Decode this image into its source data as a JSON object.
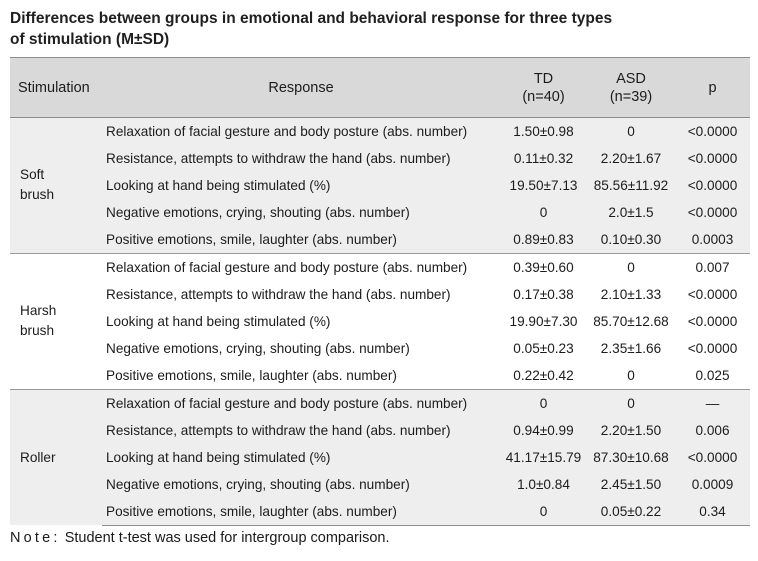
{
  "caption": {
    "line1": "Differences between groups in emotional and behavioral response for three types",
    "line2": "of stimulation (M±SD)"
  },
  "header": {
    "stimulation": "Stimulation",
    "response": "Response",
    "td": "TD",
    "td_n": "(n=40)",
    "asd": "ASD",
    "asd_n": "(n=39)",
    "p": "p"
  },
  "groups": [
    {
      "stimulation_line1": "Soft",
      "stimulation_line2": "brush",
      "rows": [
        {
          "response": "Relaxation of facial gesture and body posture (abs. number)",
          "td": "1.50±0.98",
          "asd": "0",
          "p": "<0.0000"
        },
        {
          "response": "Resistance, attempts to withdraw the hand (abs. number)",
          "td": "0.11±0.32",
          "asd": "2.20±1.67",
          "p": "<0.0000"
        },
        {
          "response": "Looking at hand being stimulated (%)",
          "td": "19.50±7.13",
          "asd": "85.56±11.92",
          "p": "<0.0000"
        },
        {
          "response": "Negative emotions, crying, shouting (abs. number)",
          "td": "0",
          "asd": "2.0±1.5",
          "p": "<0.0000"
        },
        {
          "response": "Positive emotions, smile, laughter (abs. number)",
          "td": "0.89±0.83",
          "asd": "0.10±0.30",
          "p": "0.0003"
        }
      ]
    },
    {
      "stimulation_line1": "Harsh",
      "stimulation_line2": "brush",
      "rows": [
        {
          "response": "Relaxation of facial gesture and body posture (abs. number)",
          "td": "0.39±0.60",
          "asd": "0",
          "p": "0.007"
        },
        {
          "response": "Resistance, attempts to withdraw the hand (abs. number)",
          "td": "0.17±0.38",
          "asd": "2.10±1.33",
          "p": "<0.0000"
        },
        {
          "response": "Looking at hand being stimulated (%)",
          "td": "19.90±7.30",
          "asd": "85.70±12.68",
          "p": "<0.0000"
        },
        {
          "response": "Negative emotions, crying, shouting (abs. number)",
          "td": "0.05±0.23",
          "asd": "2.35±1.66",
          "p": "<0.0000"
        },
        {
          "response": "Positive emotions, smile, laughter (abs. number)",
          "td": "0.22±0.42",
          "asd": "0",
          "p": "0.025"
        }
      ]
    },
    {
      "stimulation_line1": "Roller",
      "stimulation_line2": "",
      "rows": [
        {
          "response": "Relaxation of facial gesture and body posture (abs. number)",
          "td": "0",
          "asd": "0",
          "p": "—"
        },
        {
          "response": "Resistance, attempts to withdraw the hand (abs. number)",
          "td": "0.94±0.99",
          "asd": "2.20±1.50",
          "p": "0.006"
        },
        {
          "response": "Looking at hand being stimulated (%)",
          "td": "41.17±15.79",
          "asd": "87.30±10.68",
          "p": "<0.0000"
        },
        {
          "response": "Negative emotions, crying, shouting (abs. number)",
          "td": "1.0±0.84",
          "asd": "2.45±1.50",
          "p": "0.0009"
        },
        {
          "response": "Positive emotions, smile, laughter (abs. number)",
          "td": "0",
          "asd": "0.05±0.22",
          "p": "0.34"
        }
      ]
    }
  ],
  "note": {
    "label": "Note:",
    "text": "Student t-test was used for intergroup comparison."
  }
}
